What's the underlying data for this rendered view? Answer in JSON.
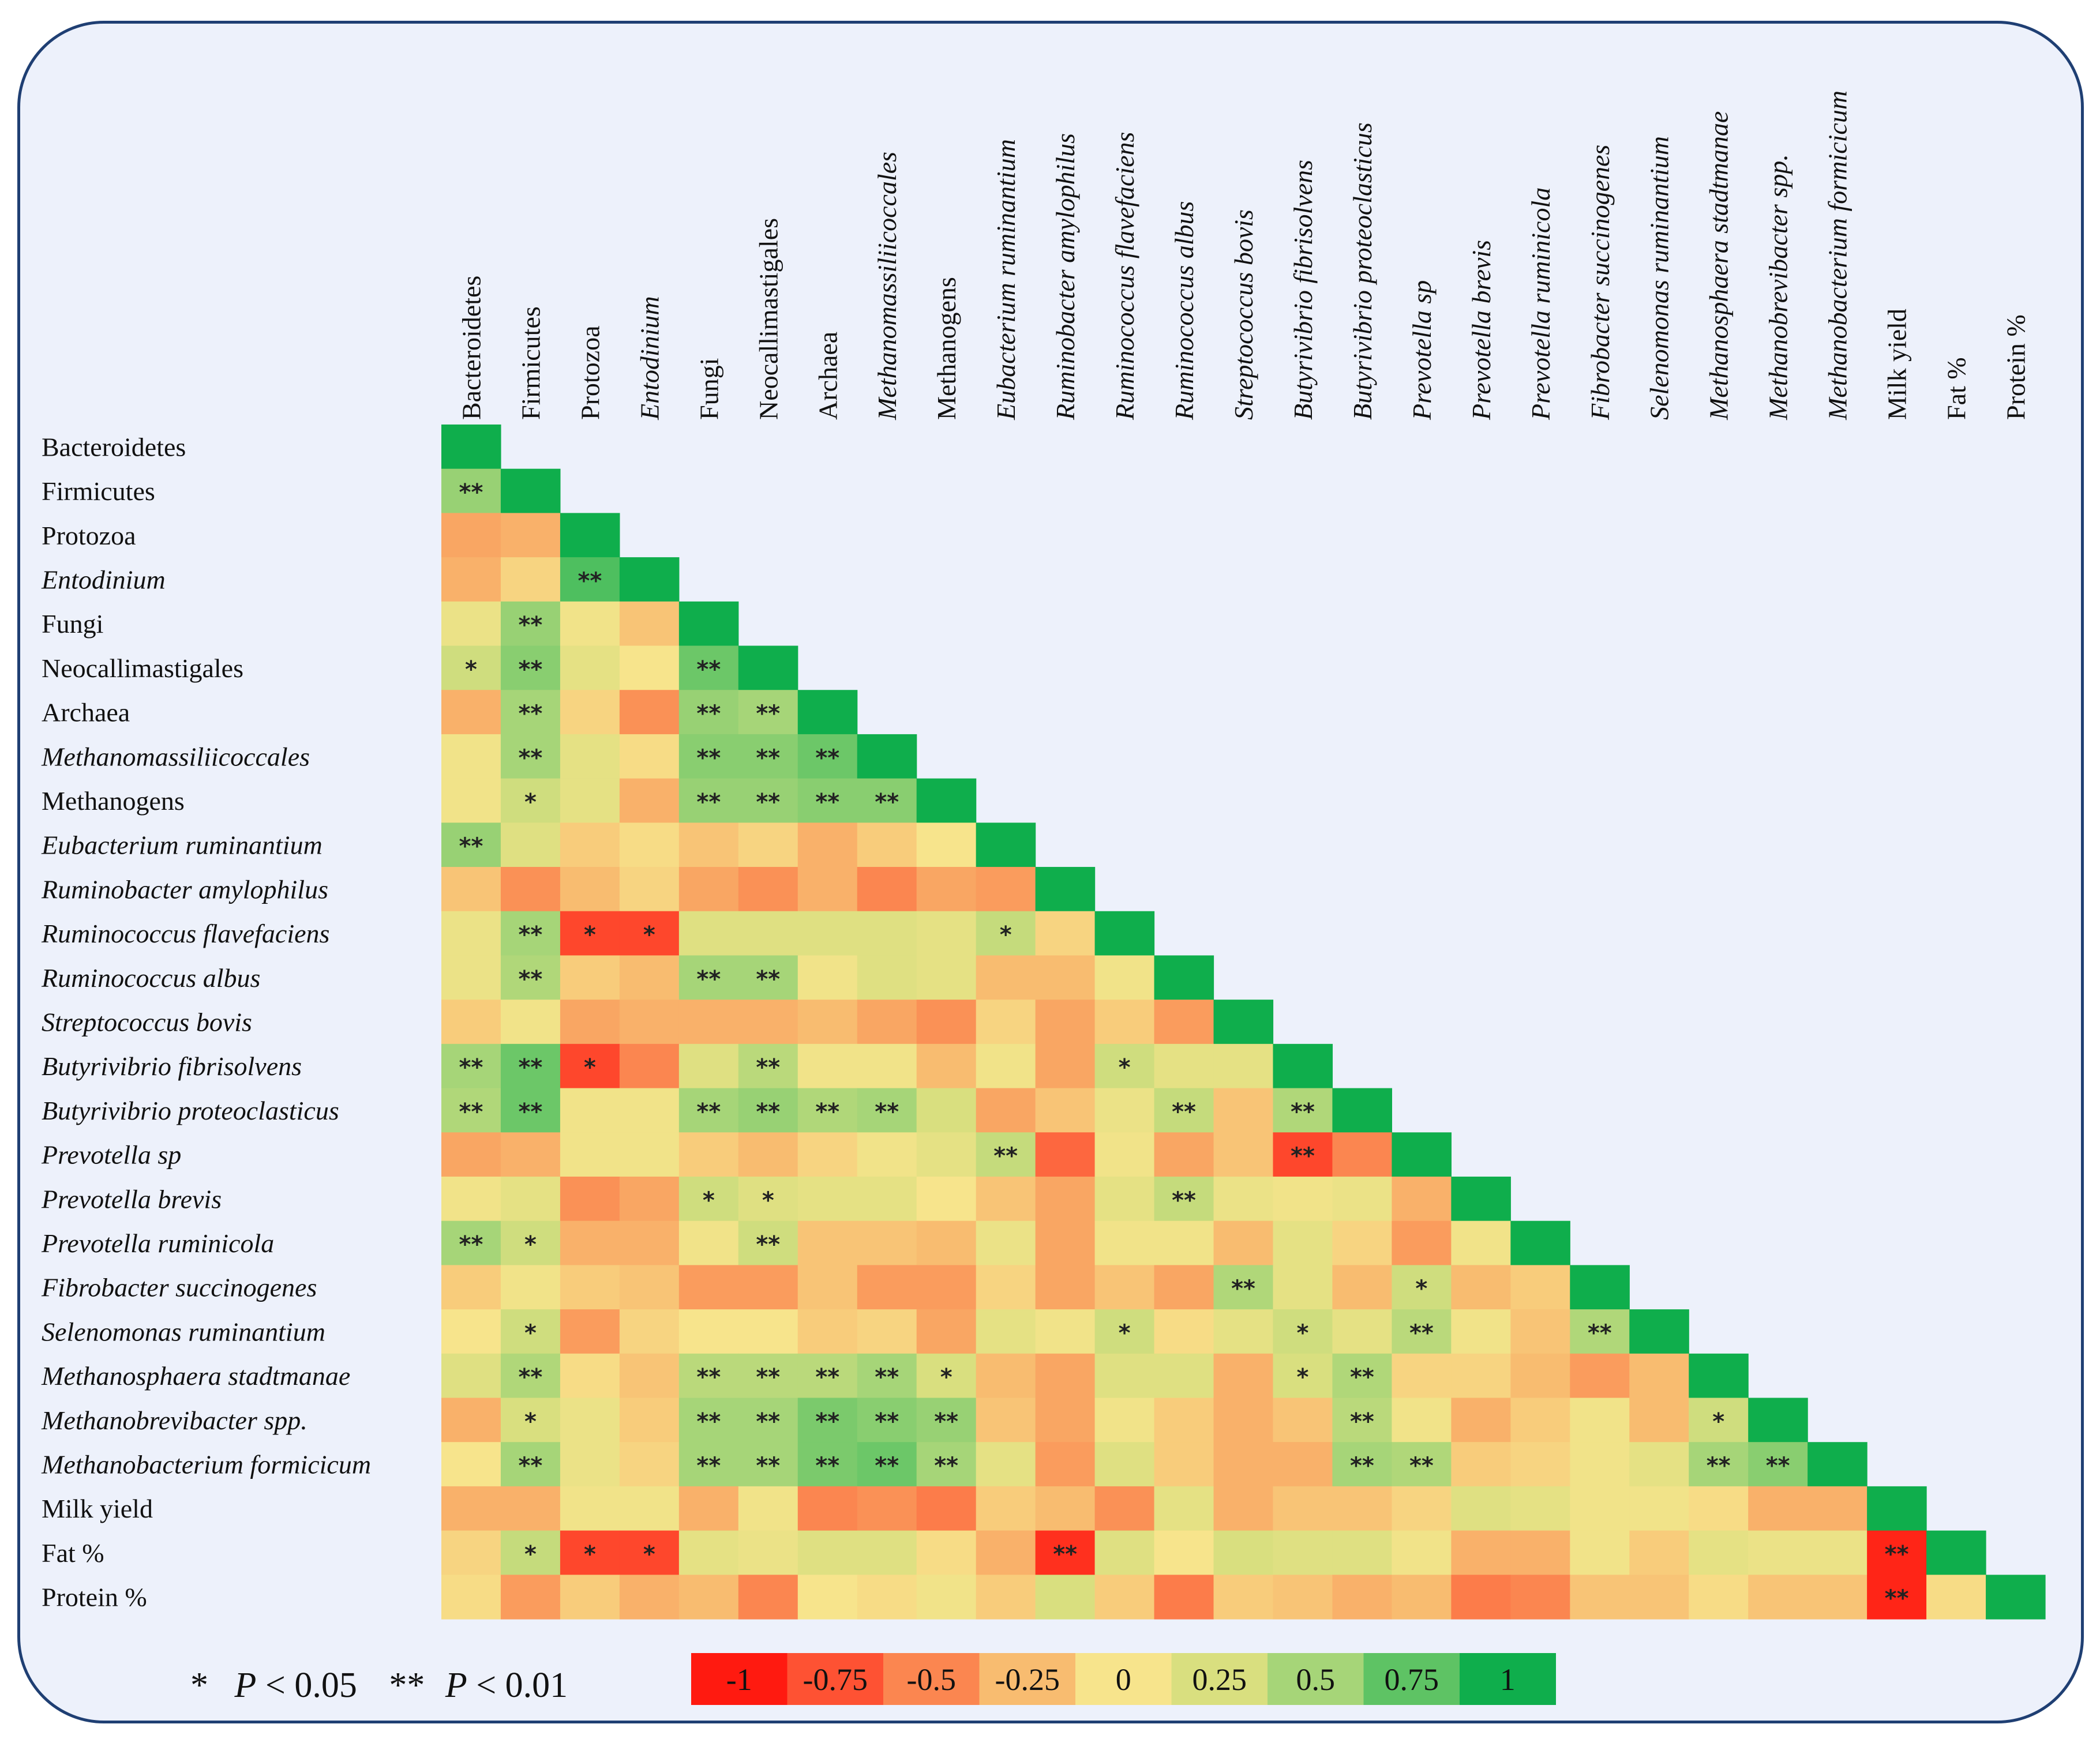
{
  "chart_data": {
    "type": "heatmap",
    "variables": [
      {
        "name": "Bacteroidetes",
        "italic": false
      },
      {
        "name": "Firmicutes",
        "italic": false
      },
      {
        "name": "Protozoa",
        "italic": false
      },
      {
        "name": "Entodinium",
        "italic": true
      },
      {
        "name": "Fungi",
        "italic": false
      },
      {
        "name": "Neocallimastigales",
        "italic": false
      },
      {
        "name": "Archaea",
        "italic": false
      },
      {
        "name": "Methanomassiliicoccales",
        "italic": true
      },
      {
        "name": "Methanogens",
        "italic": false
      },
      {
        "name": "Eubacterium ruminantium",
        "italic": true
      },
      {
        "name": "Ruminobacter amylophilus",
        "italic": true
      },
      {
        "name": "Ruminococcus flavefaciens",
        "italic": true
      },
      {
        "name": "Ruminococcus albus",
        "italic": true
      },
      {
        "name": "Streptococcus bovis",
        "italic": true
      },
      {
        "name": "Butyrivibrio fibrisolvens",
        "italic": true
      },
      {
        "name": "Butyrivibrio proteoclasticus",
        "italic": true
      },
      {
        "name": "Prevotella sp",
        "italic": true
      },
      {
        "name": "Prevotella brevis",
        "italic": true
      },
      {
        "name": "Prevotella ruminicola",
        "italic": true
      },
      {
        "name": "Fibrobacter succinogenes",
        "italic": true
      },
      {
        "name": "Selenomonas ruminantium",
        "italic": true
      },
      {
        "name": "Methanosphaera stadtmanae",
        "italic": true
      },
      {
        "name": "Methanobrevibacter spp.",
        "italic": true
      },
      {
        "name": "Methanobacterium formicicum",
        "italic": true
      },
      {
        "name": "Milk yield",
        "italic": false
      },
      {
        "name": "Fat %",
        "italic": false
      },
      {
        "name": "Protein %",
        "italic": false
      }
    ],
    "correlations": [
      [
        1
      ],
      [
        0.55,
        1
      ],
      [
        -0.35,
        -0.3,
        1
      ],
      [
        -0.3,
        -0.1,
        0.8,
        1
      ],
      [
        0.1,
        0.55,
        0.05,
        -0.2,
        1
      ],
      [
        0.3,
        0.6,
        0.15,
        0,
        0.7,
        1
      ],
      [
        -0.3,
        0.5,
        -0.1,
        -0.45,
        0.55,
        0.5,
        1
      ],
      [
        0.05,
        0.5,
        0.15,
        -0.05,
        0.6,
        0.6,
        0.7,
        1
      ],
      [
        0.05,
        0.3,
        0.15,
        -0.3,
        0.55,
        0.55,
        0.6,
        0.6,
        1
      ],
      [
        0.55,
        0.2,
        -0.15,
        -0.05,
        -0.2,
        -0.1,
        -0.3,
        -0.15,
        0,
        1
      ],
      [
        -0.2,
        -0.45,
        -0.25,
        -0.1,
        -0.35,
        -0.45,
        -0.3,
        -0.5,
        -0.35,
        -0.4,
        1
      ],
      [
        0.1,
        0.5,
        -0.8,
        -0.8,
        0.2,
        0.2,
        0.2,
        0.2,
        0.15,
        0.35,
        -0.1,
        1
      ],
      [
        0.1,
        0.45,
        -0.15,
        -0.25,
        0.5,
        0.5,
        0.05,
        0.2,
        0.15,
        -0.25,
        -0.25,
        0.05,
        1
      ],
      [
        -0.15,
        0.05,
        -0.35,
        -0.3,
        -0.3,
        -0.3,
        -0.25,
        -0.35,
        -0.45,
        -0.1,
        -0.35,
        -0.15,
        -0.4,
        1
      ],
      [
        0.5,
        0.7,
        -0.8,
        -0.5,
        0.2,
        0.4,
        0.05,
        0.05,
        -0.25,
        0.05,
        -0.35,
        0.3,
        0.15,
        0.15,
        1
      ],
      [
        0.45,
        0.7,
        0.05,
        0.05,
        0.5,
        0.55,
        0.45,
        0.5,
        0.25,
        -0.35,
        -0.2,
        0.1,
        0.35,
        -0.2,
        0.45,
        1
      ],
      [
        -0.35,
        -0.3,
        0.05,
        0.05,
        -0.15,
        -0.25,
        -0.1,
        0.05,
        0.15,
        0.35,
        -0.65,
        0.05,
        -0.35,
        -0.2,
        -0.8,
        -0.5,
        1
      ],
      [
        0.05,
        0.15,
        -0.45,
        -0.35,
        0.3,
        0.2,
        0.15,
        0.15,
        0,
        -0.2,
        -0.35,
        0.15,
        0.35,
        0.1,
        0.05,
        0.1,
        -0.3,
        1
      ],
      [
        0.5,
        0.3,
        -0.3,
        -0.3,
        0.05,
        0.3,
        -0.2,
        -0.2,
        -0.25,
        0.1,
        -0.35,
        0.05,
        0.05,
        -0.25,
        0.15,
        -0.1,
        -0.4,
        0.05,
        1
      ],
      [
        -0.15,
        0.05,
        -0.15,
        -0.2,
        -0.4,
        -0.4,
        -0.2,
        -0.4,
        -0.4,
        -0.1,
        -0.35,
        -0.2,
        -0.35,
        0.45,
        0.15,
        -0.25,
        0.3,
        -0.25,
        -0.15,
        1
      ],
      [
        0,
        0.3,
        -0.4,
        -0.1,
        0,
        0,
        -0.15,
        -0.1,
        -0.35,
        0.15,
        0.05,
        0.3,
        -0.05,
        0.15,
        0.3,
        0.15,
        0.4,
        0.05,
        -0.2,
        0.45,
        1
      ],
      [
        0.2,
        0.45,
        -0.05,
        -0.2,
        0.4,
        0.4,
        0.4,
        0.5,
        0.25,
        -0.25,
        -0.35,
        0.2,
        0.2,
        -0.3,
        0.25,
        0.45,
        -0.1,
        -0.1,
        -0.25,
        -0.4,
        -0.25,
        1
      ],
      [
        -0.3,
        0.25,
        0.1,
        -0.15,
        0.5,
        0.5,
        0.65,
        0.6,
        0.55,
        -0.2,
        -0.35,
        0.05,
        -0.15,
        -0.3,
        -0.2,
        0.4,
        0.05,
        -0.3,
        -0.15,
        0.05,
        -0.25,
        0.3,
        1
      ],
      [
        0,
        0.5,
        0.1,
        -0.1,
        0.5,
        0.5,
        0.65,
        0.7,
        0.5,
        0.15,
        -0.4,
        0.2,
        -0.15,
        -0.3,
        -0.3,
        0.5,
        0.45,
        -0.15,
        -0.1,
        0.05,
        0.15,
        0.5,
        0.6,
        1
      ],
      [
        -0.3,
        -0.3,
        0.05,
        0.05,
        -0.3,
        0.05,
        -0.5,
        -0.45,
        -0.55,
        -0.15,
        -0.25,
        -0.45,
        0.15,
        -0.3,
        -0.2,
        -0.2,
        -0.1,
        0.2,
        0.15,
        0.05,
        0.05,
        -0.05,
        -0.3,
        -0.3,
        1
      ],
      [
        -0.1,
        0.35,
        -0.8,
        -0.8,
        0.15,
        0.1,
        0.2,
        0.2,
        -0.05,
        -0.3,
        -0.9,
        0.2,
        0,
        0.25,
        0.2,
        0.2,
        0.05,
        -0.3,
        -0.3,
        0.05,
        -0.15,
        0.15,
        0.1,
        0.1,
        -0.95,
        1
      ],
      [
        -0.05,
        -0.4,
        -0.15,
        -0.3,
        -0.25,
        -0.5,
        0,
        -0.05,
        0.05,
        -0.15,
        0.25,
        -0.15,
        -0.55,
        -0.15,
        -0.2,
        -0.3,
        -0.25,
        -0.55,
        -0.5,
        -0.2,
        -0.2,
        -0.05,
        -0.2,
        -0.2,
        -0.95,
        -0.05,
        1
      ]
    ],
    "significance": [
      [
        ""
      ],
      [
        "**",
        ""
      ],
      [
        "",
        "",
        ""
      ],
      [
        "",
        "",
        "**",
        ""
      ],
      [
        "",
        "**",
        "",
        "",
        ""
      ],
      [
        "*",
        "**",
        "",
        "",
        "**",
        ""
      ],
      [
        "",
        "**",
        "",
        "",
        "**",
        "**",
        ""
      ],
      [
        "",
        "**",
        "",
        "",
        "**",
        "**",
        "**",
        ""
      ],
      [
        "",
        "*",
        "",
        "",
        "**",
        "**",
        "**",
        "**",
        ""
      ],
      [
        "**",
        "",
        "",
        "",
        "",
        "",
        "",
        "",
        "",
        ""
      ],
      [
        "",
        "",
        "",
        "",
        "",
        "",
        "",
        "",
        "",
        "",
        ""
      ],
      [
        "",
        "**",
        "*",
        "*",
        "",
        "",
        "",
        "",
        "",
        "*",
        "",
        ""
      ],
      [
        "",
        "**",
        "",
        "",
        "**",
        "**",
        "",
        "",
        "",
        "",
        "",
        "",
        ""
      ],
      [
        "",
        "",
        "",
        "",
        "",
        "",
        "",
        "",
        "",
        "",
        "",
        "",
        "",
        ""
      ],
      [
        "**",
        "**",
        "*",
        "",
        "",
        "**",
        "",
        "",
        "",
        "",
        "",
        "*",
        "",
        "",
        ""
      ],
      [
        "**",
        "**",
        "",
        "",
        "**",
        "**",
        "**",
        "**",
        "",
        "",
        "",
        "",
        "**",
        "",
        "**",
        ""
      ],
      [
        "",
        "",
        "",
        "",
        "",
        "",
        "",
        "",
        "",
        "**",
        "",
        "",
        "",
        "",
        "**",
        "",
        ""
      ],
      [
        "",
        "",
        "",
        "",
        "*",
        "*",
        "",
        "",
        "",
        "",
        "",
        "",
        "**",
        "",
        "",
        "",
        "",
        ""
      ],
      [
        "**",
        "*",
        "",
        "",
        "",
        "**",
        "",
        "",
        "",
        "",
        "",
        "",
        "",
        "",
        "",
        "",
        "",
        "",
        ""
      ],
      [
        "",
        "",
        "",
        "",
        "",
        "",
        "",
        "",
        "",
        "",
        "",
        "",
        "",
        "**",
        "",
        "",
        "*",
        "",
        "",
        ""
      ],
      [
        "",
        "*",
        "",
        "",
        "",
        "",
        "",
        "",
        "",
        "",
        "",
        "*",
        "",
        "",
        "*",
        "",
        "**",
        "",
        "",
        "**",
        ""
      ],
      [
        "",
        "**",
        "",
        "",
        "**",
        "**",
        "**",
        "**",
        "*",
        "",
        "",
        "",
        "",
        "",
        "*",
        "**",
        "",
        "",
        "",
        "",
        "",
        ""
      ],
      [
        "",
        "*",
        "",
        "",
        "**",
        "**",
        "**",
        "**",
        "**",
        "",
        "",
        "",
        "",
        "",
        "",
        "**",
        "",
        "",
        "",
        "",
        "",
        "*",
        ""
      ],
      [
        "",
        "**",
        "",
        "",
        "**",
        "**",
        "**",
        "**",
        "**",
        "",
        "",
        "",
        "",
        "",
        "",
        "**",
        "**",
        "",
        "",
        "",
        "",
        "**",
        "**",
        ""
      ],
      [
        "",
        "",
        "",
        "",
        "",
        "",
        "",
        "",
        "",
        "",
        "",
        "",
        "",
        "",
        "",
        "",
        "",
        "",
        "",
        "",
        "",
        "",
        "",
        "",
        ""
      ],
      [
        "",
        "*",
        "*",
        "*",
        "",
        "",
        "",
        "",
        "",
        "",
        "**",
        "",
        "",
        "",
        "",
        "",
        "",
        "",
        "",
        "",
        "",
        "",
        "",
        "",
        "**",
        ""
      ],
      [
        "",
        "",
        "",
        "",
        "",
        "",
        "",
        "",
        "",
        "",
        "",
        "",
        "",
        "",
        "",
        "",
        "",
        "",
        "",
        "",
        "",
        "",
        "",
        "",
        "**",
        "",
        ""
      ]
    ],
    "legend": {
      "values": [
        "-1",
        "-0.75",
        "-0.5",
        "-0.25",
        "0",
        "0.25",
        "0.5",
        "0.75",
        "1"
      ],
      "colors": [
        "#ff1a10",
        "#fe5233",
        "#fb8650",
        "#f8bc70",
        "#f7e48c",
        "#d9df7f",
        "#a6d578",
        "#5ec364",
        "#0fae4c"
      ]
    },
    "footnote": {
      "star1": "*",
      "p1": "P",
      "lt1": " < 0.05",
      "star2": "**",
      "p2": "P",
      "lt2": " < 0.01"
    }
  }
}
